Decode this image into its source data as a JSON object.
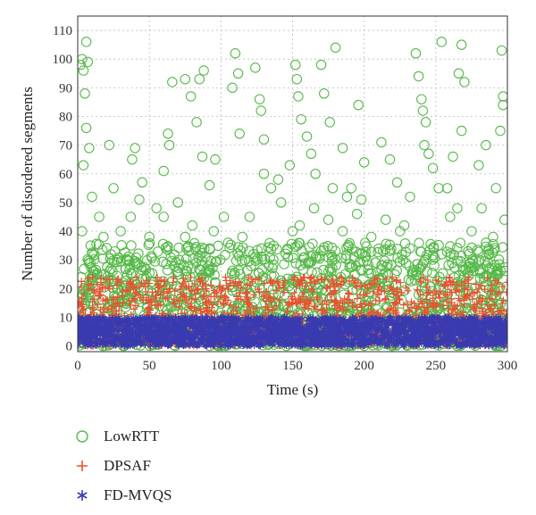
{
  "chart_data": {
    "type": "scatter",
    "title": "",
    "xlabel": "Time (s)",
    "ylabel": "Number of disordered segments",
    "xlim": [
      0,
      300
    ],
    "ylim": [
      -2,
      115
    ],
    "x_ticks": [
      0,
      50,
      100,
      150,
      200,
      250,
      300
    ],
    "x_tick_labels": [
      "0",
      "50",
      "100",
      "150",
      "200",
      "250",
      "300"
    ],
    "y_ticks": [
      0,
      10,
      20,
      30,
      40,
      50,
      60,
      70,
      80,
      90,
      100,
      110
    ],
    "y_tick_labels": [
      "0",
      "10",
      "20",
      "30",
      "40",
      "50",
      "60",
      "70",
      "80",
      "90",
      "100",
      "110"
    ],
    "grid": true,
    "legend_position": "below",
    "series": [
      {
        "name": "LowRTT",
        "marker": "circle",
        "color": "#55b948",
        "points": [
          [
            2,
            98
          ],
          [
            3,
            100
          ],
          [
            4,
            96
          ],
          [
            5,
            88
          ],
          [
            6,
            106
          ],
          [
            7,
            99
          ],
          [
            8,
            69
          ],
          [
            4,
            63
          ],
          [
            6,
            76
          ],
          [
            3,
            40
          ],
          [
            9,
            35
          ],
          [
            10,
            52
          ],
          [
            22,
            70
          ],
          [
            38,
            65
          ],
          [
            40,
            69
          ],
          [
            37,
            45
          ],
          [
            43,
            51
          ],
          [
            45,
            57
          ],
          [
            50,
            38
          ],
          [
            60,
            61
          ],
          [
            63,
            74
          ],
          [
            64,
            70
          ],
          [
            66,
            92
          ],
          [
            75,
            93
          ],
          [
            79,
            87
          ],
          [
            83,
            78
          ],
          [
            85,
            93
          ],
          [
            88,
            96
          ],
          [
            87,
            66
          ],
          [
            92,
            56
          ],
          [
            96,
            65
          ],
          [
            102,
            45
          ],
          [
            108,
            90
          ],
          [
            110,
            102
          ],
          [
            112,
            95
          ],
          [
            113,
            74
          ],
          [
            124,
            97
          ],
          [
            127,
            86
          ],
          [
            128,
            82
          ],
          [
            130,
            72
          ],
          [
            135,
            55
          ],
          [
            142,
            50
          ],
          [
            148,
            63
          ],
          [
            152,
            98
          ],
          [
            153,
            93
          ],
          [
            154,
            87
          ],
          [
            156,
            79
          ],
          [
            160,
            73
          ],
          [
            163,
            67
          ],
          [
            166,
            60
          ],
          [
            170,
            98
          ],
          [
            172,
            88
          ],
          [
            176,
            78
          ],
          [
            180,
            104
          ],
          [
            185,
            69
          ],
          [
            188,
            52
          ],
          [
            191,
            55
          ],
          [
            196,
            84
          ],
          [
            198,
            51
          ],
          [
            200,
            64
          ],
          [
            212,
            71
          ],
          [
            218,
            65
          ],
          [
            223,
            57
          ],
          [
            236,
            102
          ],
          [
            238,
            94
          ],
          [
            240,
            86
          ],
          [
            241,
            82
          ],
          [
            243,
            78
          ],
          [
            242,
            70
          ],
          [
            245,
            67
          ],
          [
            248,
            62
          ],
          [
            252,
            55
          ],
          [
            254,
            106
          ],
          [
            258,
            55
          ],
          [
            262,
            66
          ],
          [
            266,
            95
          ],
          [
            268,
            105
          ],
          [
            270,
            92
          ],
          [
            268,
            75
          ],
          [
            265,
            48
          ],
          [
            280,
            63
          ],
          [
            285,
            70
          ],
          [
            292,
            55
          ],
          [
            295,
            75
          ],
          [
            296,
            103
          ],
          [
            297,
            87
          ],
          [
            297,
            84
          ],
          [
            298,
            44
          ],
          [
            290,
            38
          ],
          [
            285,
            36
          ],
          [
            120,
            45
          ],
          [
            130,
            60
          ],
          [
            140,
            58
          ],
          [
            155,
            42
          ],
          [
            165,
            48
          ],
          [
            175,
            44
          ],
          [
            185,
            40
          ],
          [
            195,
            46
          ],
          [
            205,
            38
          ],
          [
            215,
            44
          ],
          [
            225,
            40
          ],
          [
            232,
            52
          ],
          [
            60,
            45
          ],
          [
            70,
            50
          ],
          [
            80,
            42
          ],
          [
            95,
            40
          ],
          [
            105,
            36
          ],
          [
            115,
            38
          ],
          [
            30,
            40
          ],
          [
            25,
            55
          ],
          [
            15,
            45
          ],
          [
            18,
            38
          ],
          [
            55,
            48
          ],
          [
            75,
            38
          ],
          [
            150,
            40
          ],
          [
            178,
            55
          ],
          [
            228,
            42
          ],
          [
            260,
            45
          ],
          [
            275,
            40
          ],
          [
            282,
            48
          ]
        ],
        "dense_band_y": [
          0,
          36
        ]
      },
      {
        "name": "DPSAF",
        "marker": "plus",
        "color": "#e8522f",
        "dense_band_y": [
          0,
          24
        ]
      },
      {
        "name": "FD-MVQS",
        "marker": "asterisk",
        "color": "#3a3ab0",
        "dense_band_y": [
          0,
          10
        ]
      }
    ]
  }
}
